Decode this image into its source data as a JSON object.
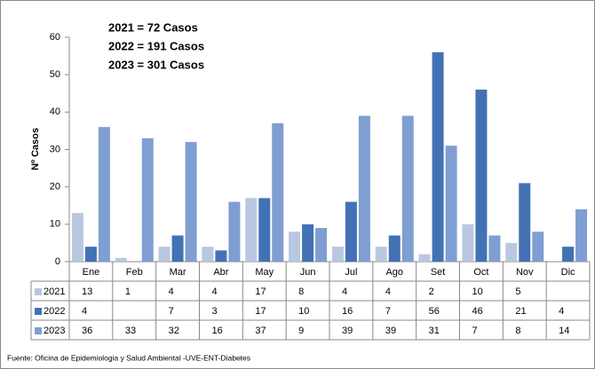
{
  "chart_data": {
    "type": "bar",
    "y_label": "Nº  Casos",
    "annotations": [
      "2021 =    72 Casos",
      "2022 =  191 Casos",
      "2023 = 301  Casos"
    ],
    "source": "Fuente: Oficina de Epidemiologia y Salud Ambiental -UVE-ENT-Diabetes",
    "categories": [
      "Ene",
      "Feb",
      "Mar",
      "Abr",
      "May",
      "Jun",
      "Jul",
      "Ago",
      "Set",
      "Oct",
      "Nov",
      "Dic"
    ],
    "series": [
      {
        "name": "2021",
        "color": "#b9c7e0",
        "values": [
          13,
          1,
          4,
          4,
          17,
          8,
          4,
          4,
          2,
          10,
          5,
          null
        ]
      },
      {
        "name": "2022",
        "color": "#4372b4",
        "values": [
          4,
          null,
          7,
          3,
          17,
          10,
          16,
          7,
          56,
          46,
          21,
          4
        ]
      },
      {
        "name": "2023",
        "color": "#7f9ed1",
        "values": [
          36,
          33,
          32,
          16,
          37,
          9,
          39,
          39,
          31,
          7,
          8,
          14
        ]
      }
    ],
    "ylim": [
      0,
      60
    ],
    "yticks": [
      0,
      10,
      20,
      30,
      40,
      50,
      60
    ],
    "grid": false
  }
}
